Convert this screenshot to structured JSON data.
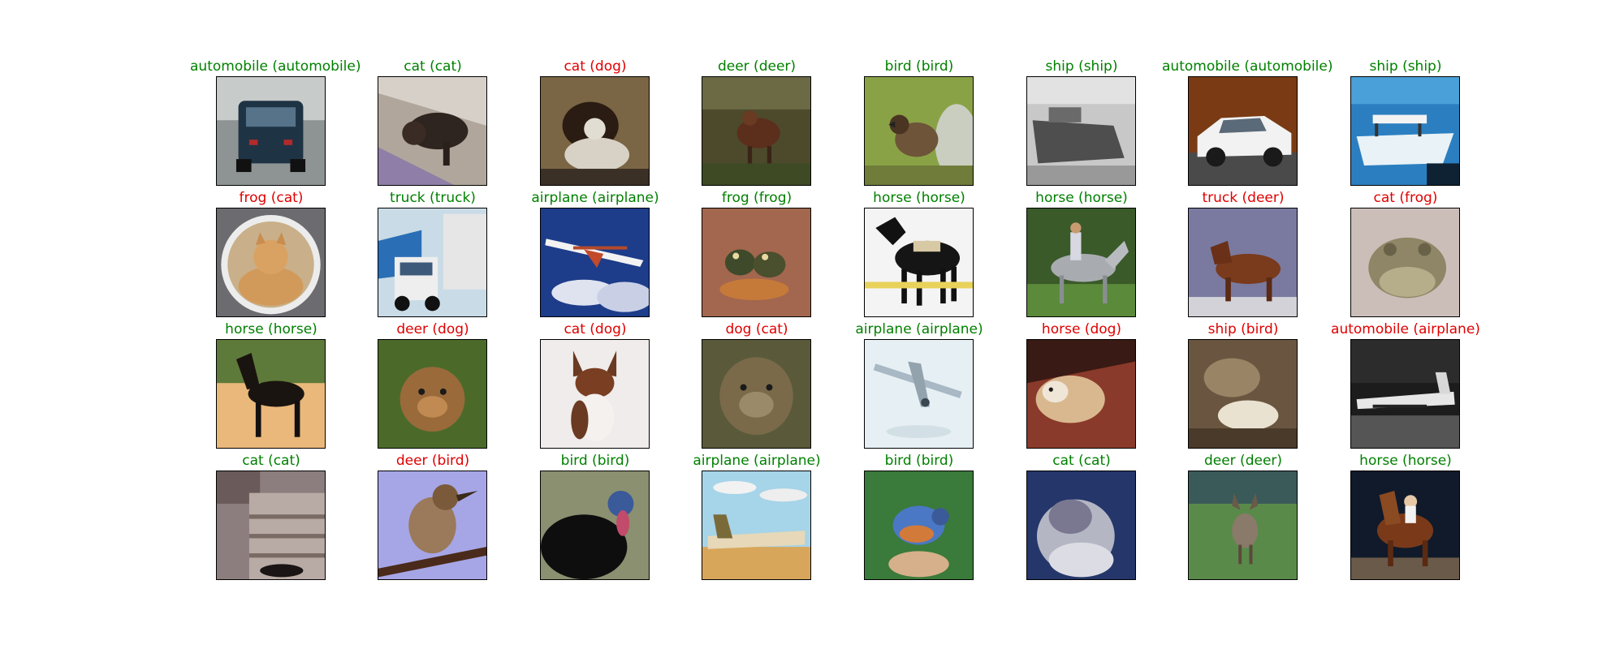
{
  "colors": {
    "correct": "#008000",
    "wrong": "#e00000"
  },
  "grid": {
    "rows": 4,
    "cols": 8
  },
  "samples": [
    {
      "label": "automobile (automobile)",
      "correct": true,
      "icon": "car-photo"
    },
    {
      "label": "cat (cat)",
      "correct": true,
      "icon": "cat-photo"
    },
    {
      "label": "cat (dog)",
      "correct": false,
      "icon": "dog-photo"
    },
    {
      "label": "deer (deer)",
      "correct": true,
      "icon": "deer-photo"
    },
    {
      "label": "bird (bird)",
      "correct": true,
      "icon": "bird-photo"
    },
    {
      "label": "ship (ship)",
      "correct": true,
      "icon": "ship-photo"
    },
    {
      "label": "automobile (automobile)",
      "correct": true,
      "icon": "car-photo"
    },
    {
      "label": "ship (ship)",
      "correct": true,
      "icon": "ship-photo"
    },
    {
      "label": "frog (cat)",
      "correct": false,
      "icon": "cat-photo"
    },
    {
      "label": "truck (truck)",
      "correct": true,
      "icon": "truck-photo"
    },
    {
      "label": "airplane (airplane)",
      "correct": true,
      "icon": "airplane-photo"
    },
    {
      "label": "frog (frog)",
      "correct": true,
      "icon": "frog-photo"
    },
    {
      "label": "horse (horse)",
      "correct": true,
      "icon": "horse-photo"
    },
    {
      "label": "horse (horse)",
      "correct": true,
      "icon": "horse-photo"
    },
    {
      "label": "truck (deer)",
      "correct": false,
      "icon": "deer-photo"
    },
    {
      "label": "cat (frog)",
      "correct": false,
      "icon": "frog-photo"
    },
    {
      "label": "horse (horse)",
      "correct": true,
      "icon": "horse-photo"
    },
    {
      "label": "deer (dog)",
      "correct": false,
      "icon": "dog-photo"
    },
    {
      "label": "cat (dog)",
      "correct": false,
      "icon": "dog-photo"
    },
    {
      "label": "dog (cat)",
      "correct": false,
      "icon": "cat-photo"
    },
    {
      "label": "airplane (airplane)",
      "correct": true,
      "icon": "airplane-photo"
    },
    {
      "label": "horse (dog)",
      "correct": false,
      "icon": "dog-photo"
    },
    {
      "label": "ship (bird)",
      "correct": false,
      "icon": "bird-photo"
    },
    {
      "label": "automobile (airplane)",
      "correct": false,
      "icon": "airplane-photo"
    },
    {
      "label": "cat (cat)",
      "correct": true,
      "icon": "cat-photo"
    },
    {
      "label": "deer (bird)",
      "correct": false,
      "icon": "bird-photo"
    },
    {
      "label": "bird (bird)",
      "correct": true,
      "icon": "bird-photo"
    },
    {
      "label": "airplane (airplane)",
      "correct": true,
      "icon": "airplane-photo"
    },
    {
      "label": "bird (bird)",
      "correct": true,
      "icon": "bird-photo"
    },
    {
      "label": "cat (cat)",
      "correct": true,
      "icon": "cat-photo"
    },
    {
      "label": "deer (deer)",
      "correct": true,
      "icon": "deer-photo"
    },
    {
      "label": "horse (horse)",
      "correct": true,
      "icon": "horse-photo"
    }
  ]
}
